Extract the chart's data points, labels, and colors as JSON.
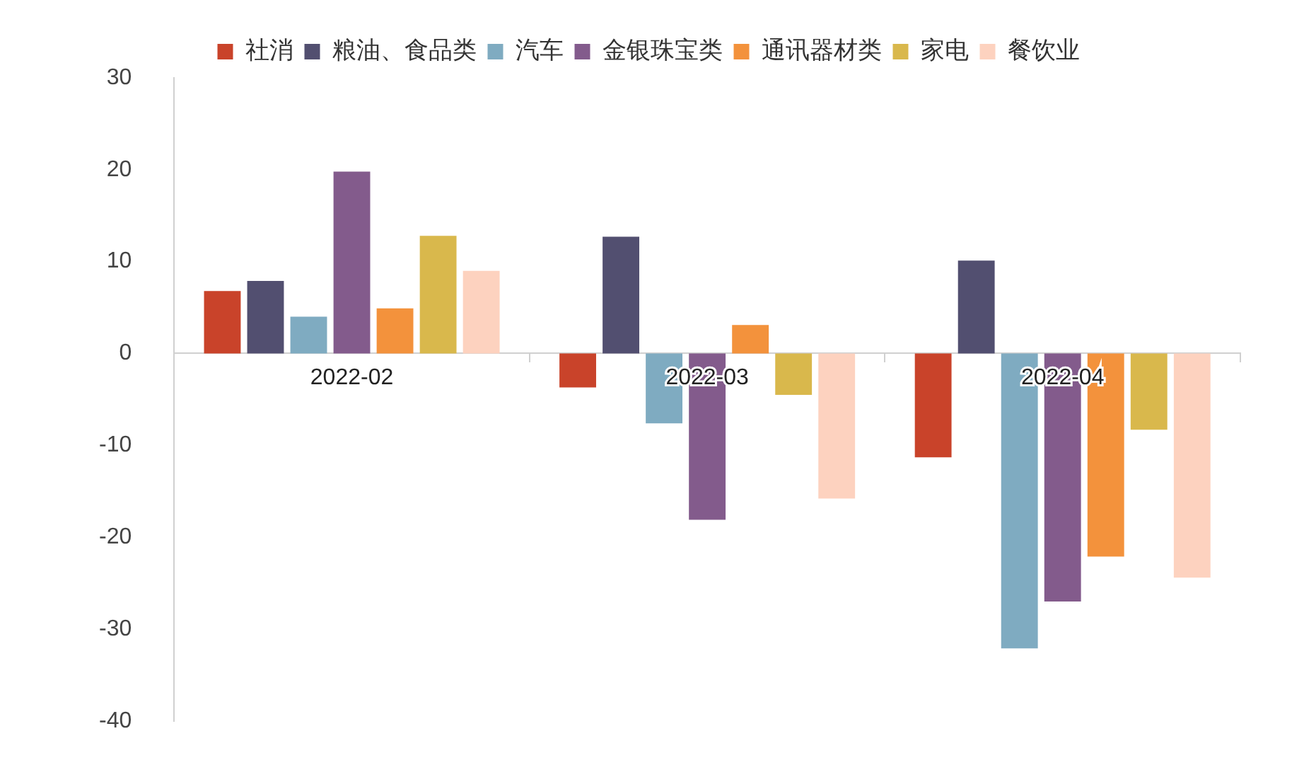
{
  "chart_data": {
    "type": "bar",
    "categories": [
      "2022-02",
      "2022-03",
      "2022-04"
    ],
    "series": [
      {
        "name": "社消",
        "color": "#c9432a",
        "values": [
          6.8,
          -3.7,
          -11.3
        ]
      },
      {
        "name": "粮油、食品类",
        "color": "#524f70",
        "values": [
          7.9,
          12.7,
          10.1
        ]
      },
      {
        "name": "汽车",
        "color": "#7fabc1",
        "values": [
          4.0,
          -7.6,
          -32.1
        ]
      },
      {
        "name": "金银珠宝类",
        "color": "#835b8c",
        "values": [
          19.8,
          -18.1,
          -27.0
        ]
      },
      {
        "name": "通讯器材类",
        "color": "#f3923c",
        "values": [
          4.9,
          3.1,
          -22.1
        ]
      },
      {
        "name": "家电",
        "color": "#d9b84c",
        "values": [
          12.8,
          -4.5,
          -8.3
        ]
      },
      {
        "name": "餐饮业",
        "color": "#fdd2bf",
        "values": [
          9.0,
          -15.8,
          -24.4
        ]
      }
    ],
    "ylim": [
      -40,
      30
    ],
    "yticks": [
      -40,
      -30,
      -20,
      -10,
      0,
      10,
      20,
      30
    ],
    "grid": false,
    "legend": "top"
  }
}
